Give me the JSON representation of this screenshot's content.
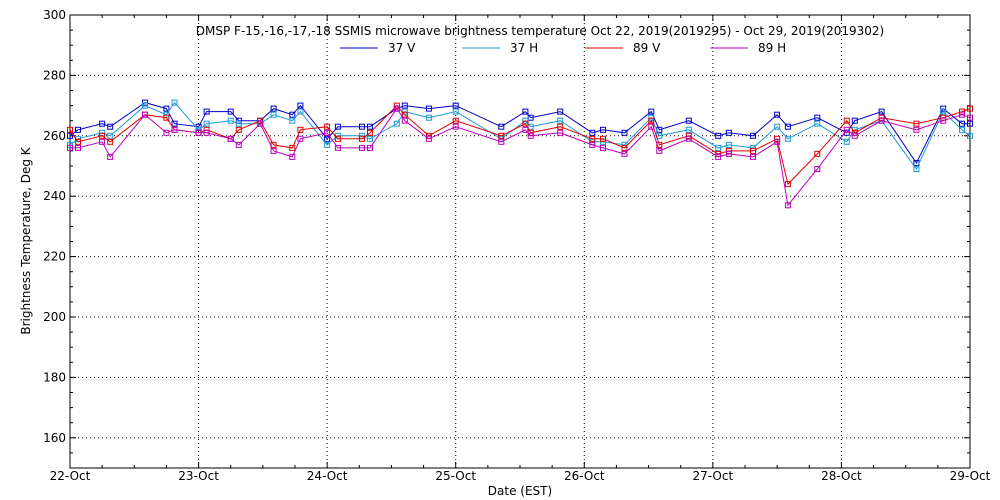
{
  "chart_data": {
    "type": "line",
    "title": "DMSP F-15,-16,-17,-18 SSMIS microwave brightness temperature Oct 22, 2019(2019295) - Oct 29, 2019(2019302)",
    "xlabel": "Date (EST)",
    "ylabel": "Brightness Temperature, Deg K",
    "ylim": [
      150,
      300
    ],
    "xlim": [
      "2019-10-22T00:00",
      "2019-10-29T00:00"
    ],
    "x_ticks": [
      "22-Oct",
      "23-Oct",
      "24-Oct",
      "25-Oct",
      "26-Oct",
      "27-Oct",
      "28-Oct",
      "29-Oct"
    ],
    "y_ticks": [
      160,
      180,
      200,
      220,
      240,
      260,
      280,
      300
    ],
    "grid": true,
    "legend_position": "top-center",
    "x": [
      "2019-10-22T00:00",
      "2019-10-22T01:00",
      "2019-10-22T06:30",
      "2019-10-22T08:00",
      "2019-10-22T14:30",
      "2019-10-22T17:30",
      "2019-10-22T19:00",
      "2019-10-23T00:00",
      "2019-10-23T02:00",
      "2019-10-23T06:30",
      "2019-10-23T08:00",
      "2019-10-23T14:30",
      "2019-10-23T17:30",
      "2019-10-23T19:00",
      "2019-10-24T00:00",
      "2019-10-24T01:00",
      "2019-10-24T06:30",
      "2019-10-24T08:00",
      "2019-10-24T14:30",
      "2019-10-24T17:30",
      "2019-10-24T19:00",
      "2019-10-25T19:00",
      "2019-10-26T00:00",
      "2019-10-25T01:00",
      "2019-10-25T06:30",
      "2019-10-25T08:00",
      "2019-10-26T02:00",
      "2019-10-26T06:30",
      "2019-10-26T08:00",
      "2019-10-26T14:30",
      "2019-10-26T17:30",
      "2019-10-26T19:00",
      "2019-10-27T00:00",
      "2019-10-27T06:30",
      "2019-10-27T08:00",
      "2019-10-27T14:30",
      "2019-10-27T17:30",
      "2019-10-27T19:00",
      "2019-10-28T00:00",
      "2019-10-28T06:30",
      "2019-10-28T14:30",
      "2019-10-28T17:30",
      "2019-10-28T19:00",
      "2019-10-29T00:00"
    ],
    "series": [
      {
        "name": "37 V",
        "color": "#0000cc",
        "x": [
          "2019-10-22T00:00",
          "2019-10-22T01:30",
          "2019-10-22T06:00",
          "2019-10-22T07:30",
          "2019-10-22T14:00",
          "2019-10-22T18:00",
          "2019-10-22T19:30",
          "2019-10-23T00:00",
          "2019-10-23T01:30",
          "2019-10-23T06:00",
          "2019-10-23T07:30",
          "2019-10-23T11:30",
          "2019-10-23T14:00",
          "2019-10-23T17:30",
          "2019-10-23T19:00",
          "2019-10-24T00:00",
          "2019-10-24T02:00",
          "2019-10-24T06:30",
          "2019-10-24T08:00",
          "2019-10-24T13:00",
          "2019-10-24T14:30",
          "2019-10-24T19:00",
          "2019-10-25T00:00",
          "2019-10-25T08:30",
          "2019-10-25T13:00",
          "2019-10-25T14:00",
          "2019-10-25T19:30",
          "2019-10-26T01:30",
          "2019-10-26T03:30",
          "2019-10-26T07:30",
          "2019-10-26T12:30",
          "2019-10-26T14:00",
          "2019-10-26T19:30",
          "2019-10-27T01:00",
          "2019-10-27T03:00",
          "2019-10-27T07:30",
          "2019-10-27T12:00",
          "2019-10-27T14:00",
          "2019-10-27T19:30",
          "2019-10-28T01:00",
          "2019-10-28T02:30",
          "2019-10-28T07:30",
          "2019-10-28T14:00",
          "2019-10-28T19:00",
          "2019-10-28T22:30",
          "2019-10-29T00:00"
        ],
        "values": [
          260,
          262,
          264,
          263,
          271,
          269,
          264,
          263,
          268,
          268,
          265,
          265,
          269,
          267,
          270,
          259,
          263,
          263,
          263,
          269,
          270,
          269,
          270,
          263,
          268,
          266,
          268,
          261,
          262,
          261,
          268,
          262,
          265,
          260,
          261,
          260,
          267,
          263,
          266,
          261,
          265,
          268,
          251,
          269,
          264,
          264
        ]
      },
      {
        "name": "37 H",
        "color": "#1c9ad6",
        "x": [
          "2019-10-22T00:00",
          "2019-10-22T01:30",
          "2019-10-22T06:00",
          "2019-10-22T07:30",
          "2019-10-22T14:00",
          "2019-10-22T18:00",
          "2019-10-22T19:30",
          "2019-10-23T00:00",
          "2019-10-23T01:30",
          "2019-10-23T06:00",
          "2019-10-23T07:30",
          "2019-10-23T11:30",
          "2019-10-23T14:00",
          "2019-10-23T17:30",
          "2019-10-23T19:00",
          "2019-10-24T00:00",
          "2019-10-24T02:00",
          "2019-10-24T06:30",
          "2019-10-24T08:00",
          "2019-10-24T13:00",
          "2019-10-24T14:30",
          "2019-10-24T19:00",
          "2019-10-25T00:00",
          "2019-10-25T08:30",
          "2019-10-25T13:00",
          "2019-10-25T14:00",
          "2019-10-25T19:30",
          "2019-10-26T01:30",
          "2019-10-26T03:30",
          "2019-10-26T07:30",
          "2019-10-26T12:30",
          "2019-10-26T14:00",
          "2019-10-26T19:30",
          "2019-10-27T01:00",
          "2019-10-27T03:00",
          "2019-10-27T07:30",
          "2019-10-27T12:00",
          "2019-10-27T14:00",
          "2019-10-27T19:30",
          "2019-10-28T01:00",
          "2019-10-28T02:30",
          "2019-10-28T07:30",
          "2019-10-28T14:00",
          "2019-10-28T19:00",
          "2019-10-28T22:30",
          "2019-10-29T00:00"
        ],
        "values": [
          257,
          259,
          261,
          260,
          270,
          267,
          271,
          262,
          264,
          265,
          264,
          264,
          267,
          265,
          268,
          257,
          260,
          260,
          259,
          264,
          268,
          266,
          268,
          259,
          265,
          263,
          265,
          258,
          258,
          257,
          266,
          260,
          262,
          256,
          257,
          256,
          263,
          259,
          264,
          258,
          262,
          265,
          249,
          268,
          262,
          260
        ]
      },
      {
        "name": "89 V",
        "color": "#dd0000",
        "x": [
          "2019-10-22T00:00",
          "2019-10-22T01:30",
          "2019-10-22T06:00",
          "2019-10-22T07:30",
          "2019-10-22T14:00",
          "2019-10-22T18:00",
          "2019-10-22T19:30",
          "2019-10-23T00:00",
          "2019-10-23T01:30",
          "2019-10-23T06:00",
          "2019-10-23T07:30",
          "2019-10-23T11:30",
          "2019-10-23T14:00",
          "2019-10-23T17:30",
          "2019-10-23T19:00",
          "2019-10-24T00:00",
          "2019-10-24T02:00",
          "2019-10-24T06:30",
          "2019-10-24T08:00",
          "2019-10-24T13:00",
          "2019-10-24T14:30",
          "2019-10-24T19:00",
          "2019-10-25T00:00",
          "2019-10-25T08:30",
          "2019-10-25T13:00",
          "2019-10-25T14:00",
          "2019-10-25T19:30",
          "2019-10-26T01:30",
          "2019-10-26T03:30",
          "2019-10-26T07:30",
          "2019-10-26T12:30",
          "2019-10-26T14:00",
          "2019-10-26T19:30",
          "2019-10-27T01:00",
          "2019-10-27T03:00",
          "2019-10-27T07:30",
          "2019-10-27T12:00",
          "2019-10-27T14:00",
          "2019-10-27T19:30",
          "2019-10-28T01:00",
          "2019-10-28T02:30",
          "2019-10-28T07:30",
          "2019-10-28T14:00",
          "2019-10-28T19:00",
          "2019-10-28T22:30",
          "2019-10-29T00:00"
        ],
        "values": [
          262,
          258,
          260,
          258,
          267,
          266,
          262,
          261,
          262,
          259,
          262,
          265,
          257,
          256,
          262,
          263,
          259,
          259,
          261,
          270,
          267,
          260,
          265,
          260,
          264,
          261,
          263,
          259,
          259,
          256,
          265,
          257,
          260,
          254,
          255,
          255,
          259,
          244,
          254,
          265,
          261,
          266,
          264,
          266,
          268,
          269
        ]
      },
      {
        "name": "89 H",
        "color": "#bb00bb",
        "x": [
          "2019-10-22T00:00",
          "2019-10-22T01:30",
          "2019-10-22T06:00",
          "2019-10-22T07:30",
          "2019-10-22T14:00",
          "2019-10-22T18:00",
          "2019-10-22T19:30",
          "2019-10-23T00:00",
          "2019-10-23T01:30",
          "2019-10-23T06:00",
          "2019-10-23T07:30",
          "2019-10-23T11:30",
          "2019-10-23T14:00",
          "2019-10-23T17:30",
          "2019-10-23T19:00",
          "2019-10-24T00:00",
          "2019-10-24T02:00",
          "2019-10-24T06:30",
          "2019-10-24T08:00",
          "2019-10-24T13:00",
          "2019-10-24T14:30",
          "2019-10-24T19:00",
          "2019-10-25T00:00",
          "2019-10-25T08:30",
          "2019-10-25T13:00",
          "2019-10-25T14:00",
          "2019-10-25T19:30",
          "2019-10-26T01:30",
          "2019-10-26T03:30",
          "2019-10-26T07:30",
          "2019-10-26T12:30",
          "2019-10-26T14:00",
          "2019-10-26T19:30",
          "2019-10-27T01:00",
          "2019-10-27T03:00",
          "2019-10-27T07:30",
          "2019-10-27T12:00",
          "2019-10-27T14:00",
          "2019-10-27T19:30",
          "2019-10-28T01:00",
          "2019-10-28T02:30",
          "2019-10-28T07:30",
          "2019-10-28T14:00",
          "2019-10-28T19:00",
          "2019-10-28T22:30",
          "2019-10-29T00:00"
        ],
        "values": [
          256,
          256,
          258,
          253,
          267,
          261,
          262,
          261,
          261,
          259,
          257,
          264,
          255,
          253,
          259,
          261,
          256,
          256,
          256,
          269,
          265,
          259,
          263,
          258,
          262,
          260,
          261,
          257,
          256,
          254,
          263,
          255,
          259,
          253,
          254,
          253,
          258,
          237,
          249,
          262,
          260,
          265,
          262,
          265,
          267,
          266
        ]
      }
    ]
  }
}
